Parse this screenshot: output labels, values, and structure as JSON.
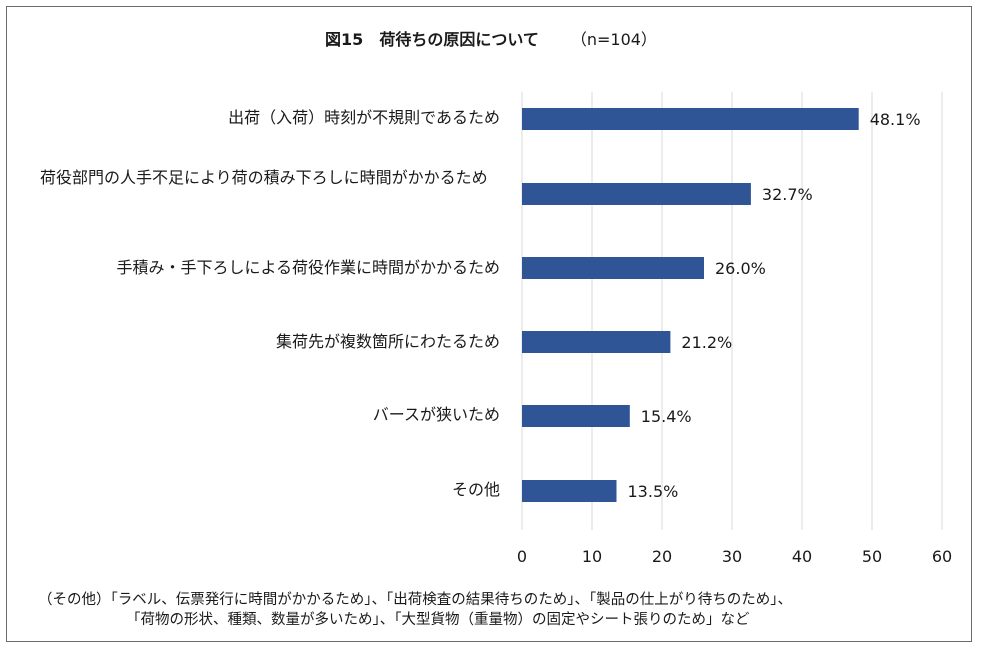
{
  "chart_data": {
    "type": "bar",
    "orientation": "horizontal",
    "title": "図15　荷待ちの原因について",
    "subtitle": "（n=104）",
    "categories": [
      "出荷（入荷）時刻が不規則であるため",
      "荷役部門の人手不足により荷の積み下ろしに時間がかかるため",
      "手積み・手下ろしによる荷役作業に時間がかかるため",
      "集荷先が複数箇所にわたるため",
      "バースが狭いため",
      "その他"
    ],
    "values": [
      48.1,
      32.7,
      26.0,
      21.2,
      15.4,
      13.5
    ],
    "value_labels": [
      "48.1%",
      "32.7%",
      "26.0%",
      "21.2%",
      "15.4%",
      "13.5%"
    ],
    "x_ticks": [
      "0",
      "10",
      "20",
      "30",
      "40",
      "50",
      "60"
    ],
    "xlim": [
      0,
      60
    ],
    "grid": "vertical",
    "bar_color": "#2f5597",
    "xlabel": "",
    "ylabel": ""
  },
  "footnote": {
    "line1": "（その他）「ラベル、伝票発行に時間がかかるため」、「出荷検査の結果待ちのため」、「製品の仕上がり待ちのため」、",
    "line2": "「荷物の形状、種類、数量が多いため」、「大型貨物（重量物）の固定やシート張りのため」など"
  }
}
